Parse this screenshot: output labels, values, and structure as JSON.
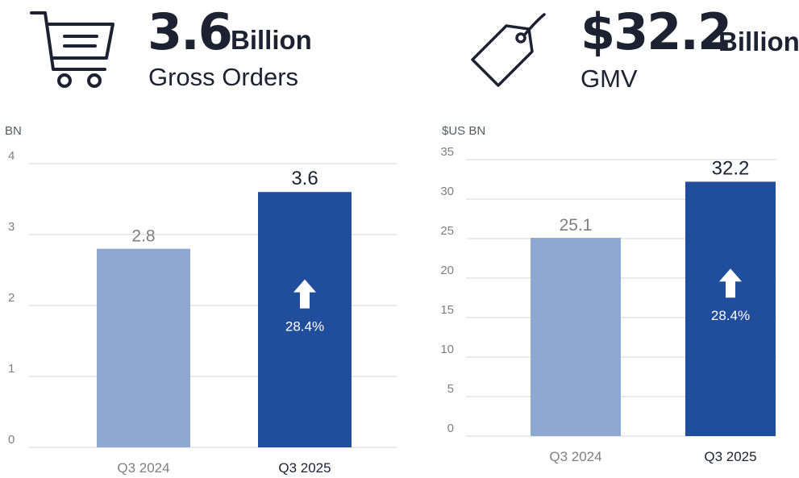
{
  "header": {
    "orders": {
      "value": "3.6",
      "unit": "Billion",
      "label": "Gross Orders",
      "icon": "shopping-cart-icon"
    },
    "gmv": {
      "value": "$32.2",
      "unit": "Billion",
      "label": "GMV",
      "icon": "price-tag-icon"
    }
  },
  "colors": {
    "prior_bar": "#8ea8d1",
    "current_bar": "#204d9c",
    "gridline": "#e3e3e3",
    "axis_text": "#7f7f7f",
    "dark_text": "#1d2233"
  },
  "chart_data": [
    {
      "type": "bar",
      "title": "Gross Orders",
      "ylabel": "BN",
      "xlabel": "",
      "categories": [
        "Q3 2024",
        "Q3 2025"
      ],
      "values": [
        2.8,
        3.6
      ],
      "value_labels": [
        "2.8",
        "3.6"
      ],
      "ylim": [
        0,
        4
      ],
      "yticks": [
        0,
        1,
        2,
        3,
        4
      ],
      "growth_label": "28.4%",
      "grid": true
    },
    {
      "type": "bar",
      "title": "GMV",
      "ylabel": "$US BN",
      "xlabel": "",
      "categories": [
        "Q3 2024",
        "Q3 2025"
      ],
      "values": [
        25.1,
        32.2
      ],
      "value_labels": [
        "25.1",
        "32.2"
      ],
      "ylim": [
        0,
        35
      ],
      "yticks": [
        0,
        5,
        10,
        15,
        20,
        25,
        30,
        35
      ],
      "growth_label": "28.4%",
      "grid": true
    }
  ]
}
